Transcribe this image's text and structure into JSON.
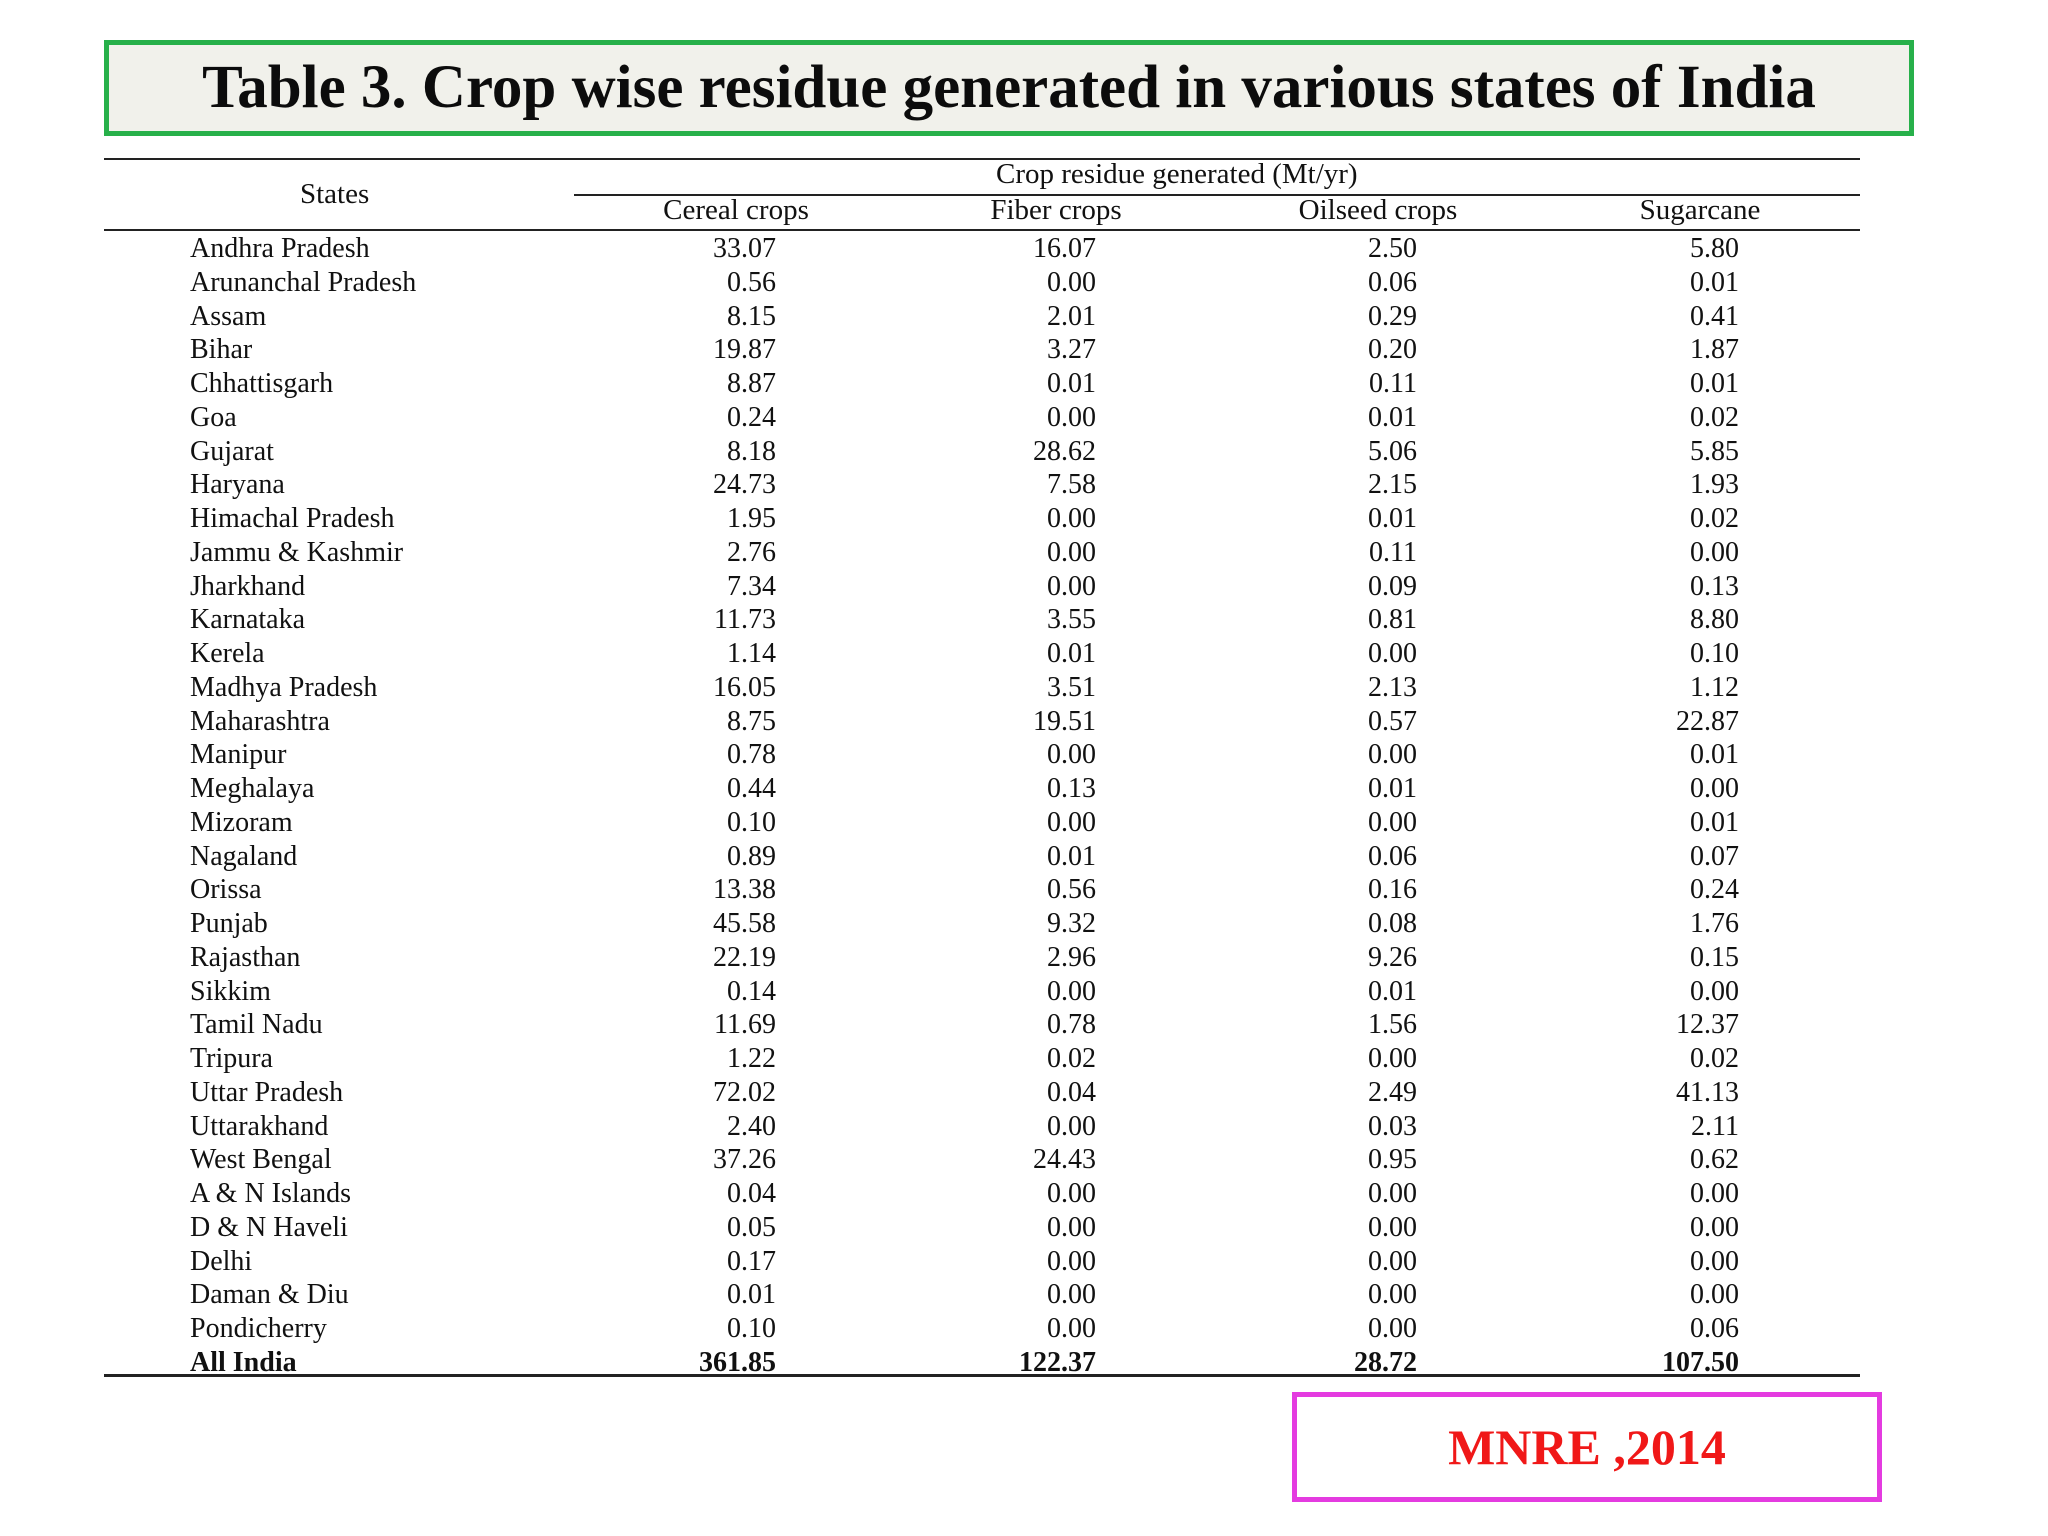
{
  "title": "Table 3. Crop wise residue generated in various states of India",
  "table": {
    "states_header": "States",
    "group_header": "Crop residue generated (Mt/yr)",
    "columns": [
      "Cereal crops",
      "Fiber crops",
      "Oilseed crops",
      "Sugarcane"
    ],
    "rows": [
      {
        "state": "Andhra Pradesh",
        "values": [
          "33.07",
          "16.07",
          "2.50",
          "5.80"
        ]
      },
      {
        "state": "Arunanchal Pradesh",
        "values": [
          "0.56",
          "0.00",
          "0.06",
          "0.01"
        ]
      },
      {
        "state": "Assam",
        "values": [
          "8.15",
          "2.01",
          "0.29",
          "0.41"
        ]
      },
      {
        "state": "Bihar",
        "values": [
          "19.87",
          "3.27",
          "0.20",
          "1.87"
        ]
      },
      {
        "state": "Chhattisgarh",
        "values": [
          "8.87",
          "0.01",
          "0.11",
          "0.01"
        ]
      },
      {
        "state": "Goa",
        "values": [
          "0.24",
          "0.00",
          "0.01",
          "0.02"
        ]
      },
      {
        "state": "Gujarat",
        "values": [
          "8.18",
          "28.62",
          "5.06",
          "5.85"
        ]
      },
      {
        "state": "Haryana",
        "values": [
          "24.73",
          "7.58",
          "2.15",
          "1.93"
        ]
      },
      {
        "state": "Himachal Pradesh",
        "values": [
          "1.95",
          "0.00",
          "0.01",
          "0.02"
        ]
      },
      {
        "state": "Jammu & Kashmir",
        "values": [
          "2.76",
          "0.00",
          "0.11",
          "0.00"
        ]
      },
      {
        "state": "Jharkhand",
        "values": [
          "7.34",
          "0.00",
          "0.09",
          "0.13"
        ]
      },
      {
        "state": "Karnataka",
        "values": [
          "11.73",
          "3.55",
          "0.81",
          "8.80"
        ]
      },
      {
        "state": "Kerela",
        "values": [
          "1.14",
          "0.01",
          "0.00",
          "0.10"
        ]
      },
      {
        "state": "Madhya Pradesh",
        "values": [
          "16.05",
          "3.51",
          "2.13",
          "1.12"
        ]
      },
      {
        "state": "Maharashtra",
        "values": [
          "8.75",
          "19.51",
          "0.57",
          "22.87"
        ]
      },
      {
        "state": "Manipur",
        "values": [
          "0.78",
          "0.00",
          "0.00",
          "0.01"
        ]
      },
      {
        "state": "Meghalaya",
        "values": [
          "0.44",
          "0.13",
          "0.01",
          "0.00"
        ]
      },
      {
        "state": "Mizoram",
        "values": [
          "0.10",
          "0.00",
          "0.00",
          "0.01"
        ]
      },
      {
        "state": "Nagaland",
        "values": [
          "0.89",
          "0.01",
          "0.06",
          "0.07"
        ]
      },
      {
        "state": "Orissa",
        "values": [
          "13.38",
          "0.56",
          "0.16",
          "0.24"
        ]
      },
      {
        "state": "Punjab",
        "values": [
          "45.58",
          "9.32",
          "0.08",
          "1.76"
        ]
      },
      {
        "state": "Rajasthan",
        "values": [
          "22.19",
          "2.96",
          "9.26",
          "0.15"
        ]
      },
      {
        "state": "Sikkim",
        "values": [
          "0.14",
          "0.00",
          "0.01",
          "0.00"
        ]
      },
      {
        "state": "Tamil Nadu",
        "values": [
          "11.69",
          "0.78",
          "1.56",
          "12.37"
        ]
      },
      {
        "state": "Tripura",
        "values": [
          "1.22",
          "0.02",
          "0.00",
          "0.02"
        ]
      },
      {
        "state": "Uttar Pradesh",
        "values": [
          "72.02",
          "0.04",
          "2.49",
          "41.13"
        ]
      },
      {
        "state": "Uttarakhand",
        "values": [
          "2.40",
          "0.00",
          "0.03",
          "2.11"
        ]
      },
      {
        "state": "West Bengal",
        "values": [
          "37.26",
          "24.43",
          "0.95",
          "0.62"
        ]
      },
      {
        "state": "A & N Islands",
        "values": [
          "0.04",
          "0.00",
          "0.00",
          "0.00"
        ]
      },
      {
        "state": "D & N Haveli",
        "values": [
          "0.05",
          "0.00",
          "0.00",
          "0.00"
        ]
      },
      {
        "state": "Delhi",
        "values": [
          "0.17",
          "0.00",
          "0.00",
          "0.00"
        ]
      },
      {
        "state": "Daman & Diu",
        "values": [
          "0.01",
          "0.00",
          "0.00",
          "0.00"
        ]
      },
      {
        "state": "Pondicherry",
        "values": [
          "0.10",
          "0.00",
          "0.00",
          "0.06"
        ]
      }
    ],
    "total": {
      "state": "All India",
      "values": [
        "361.85",
        "122.37",
        "28.72",
        "107.50"
      ]
    }
  },
  "source": "MNRE ,2014",
  "colors": {
    "title_border": "#27b04a",
    "title_bg": "#f1f1eb",
    "source_border": "#e43be0",
    "source_text": "#f01818"
  }
}
